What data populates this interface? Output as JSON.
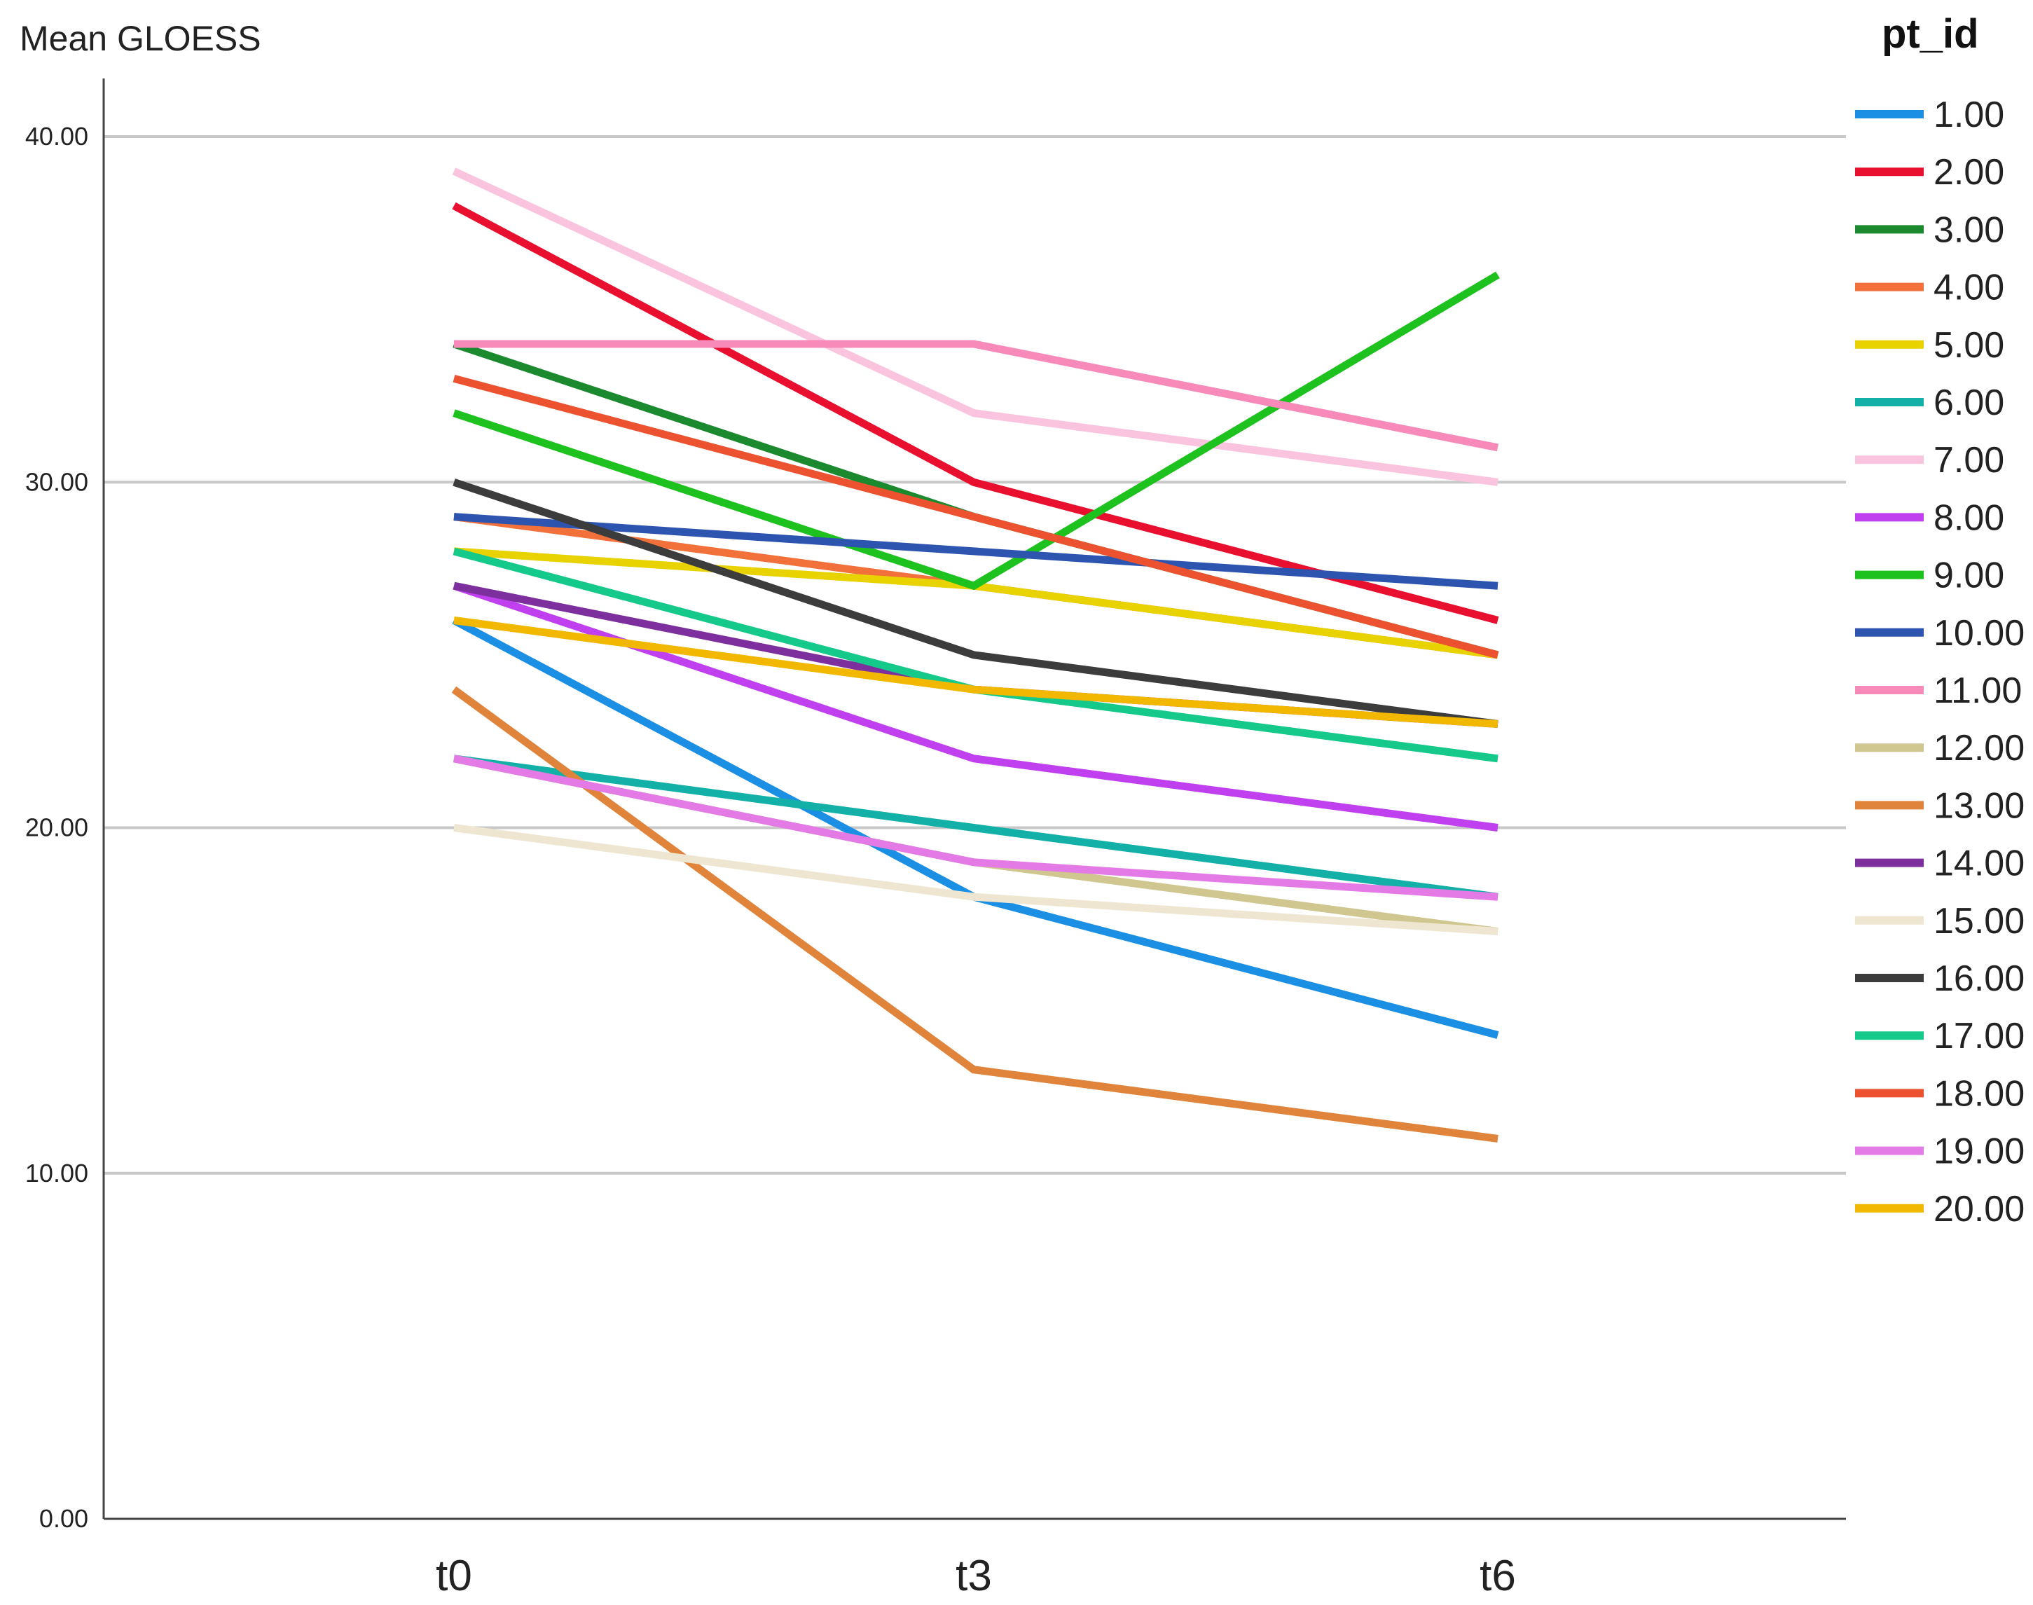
{
  "chart_data": {
    "type": "line",
    "ylabel": "Mean GLOESS",
    "xlabel": "",
    "categories": [
      "t0",
      "t3",
      "t6"
    ],
    "ylim": [
      0,
      40
    ],
    "yticks": [
      "0.00",
      "10.00",
      "20.00",
      "30.00",
      "40.00"
    ],
    "grid": true,
    "legend": {
      "title": "pt_id",
      "placement": "right"
    },
    "series": [
      {
        "name": "1.00",
        "color": "#1a8fe3",
        "values": [
          26,
          18,
          14
        ]
      },
      {
        "name": "2.00",
        "color": "#e8102e",
        "values": [
          38,
          30,
          26
        ]
      },
      {
        "name": "3.00",
        "color": "#1b8a2e",
        "values": [
          34,
          29,
          25
        ]
      },
      {
        "name": "4.00",
        "color": "#f2703a",
        "values": [
          29,
          27,
          25
        ]
      },
      {
        "name": "5.00",
        "color": "#e8d200",
        "values": [
          28,
          27,
          25
        ]
      },
      {
        "name": "6.00",
        "color": "#12b0a6",
        "values": [
          22,
          20,
          18
        ]
      },
      {
        "name": "7.00",
        "color": "#fac4de",
        "values": [
          39,
          32,
          30
        ]
      },
      {
        "name": "8.00",
        "color": "#c040f0",
        "values": [
          27,
          22,
          20
        ]
      },
      {
        "name": "9.00",
        "color": "#1ec21e",
        "values": [
          32,
          27,
          36
        ]
      },
      {
        "name": "10.00",
        "color": "#2d55b0",
        "values": [
          29,
          28,
          27
        ]
      },
      {
        "name": "11.00",
        "color": "#f78ab8",
        "values": [
          34,
          34,
          31
        ]
      },
      {
        "name": "12.00",
        "color": "#cfc690",
        "values": [
          22,
          19,
          17
        ]
      },
      {
        "name": "13.00",
        "color": "#e0843c",
        "values": [
          24,
          13,
          11
        ]
      },
      {
        "name": "14.00",
        "color": "#7e2f9e",
        "values": [
          27,
          24,
          23
        ]
      },
      {
        "name": "15.00",
        "color": "#efe6d2",
        "values": [
          20,
          18,
          17
        ]
      },
      {
        "name": "16.00",
        "color": "#3c3c3c",
        "values": [
          30,
          25,
          23
        ]
      },
      {
        "name": "17.00",
        "color": "#15c98a",
        "values": [
          28,
          24,
          22
        ]
      },
      {
        "name": "18.00",
        "color": "#ec5230",
        "values": [
          33,
          29,
          25
        ]
      },
      {
        "name": "19.00",
        "color": "#e37ae6",
        "values": [
          22,
          19,
          18
        ]
      },
      {
        "name": "20.00",
        "color": "#f2b800",
        "values": [
          26,
          24,
          23
        ]
      }
    ]
  }
}
